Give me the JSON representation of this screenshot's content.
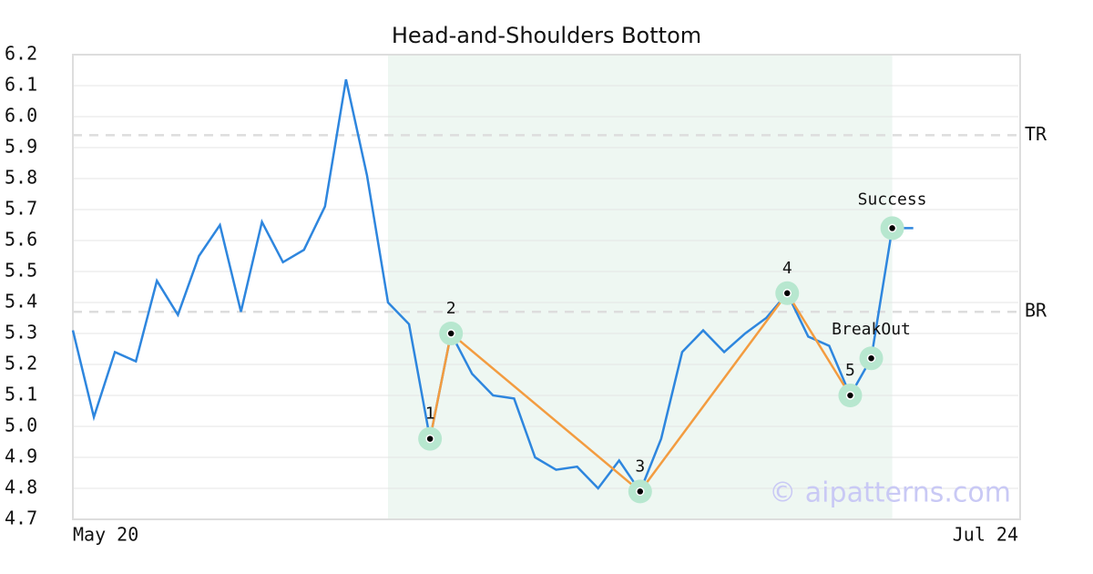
{
  "chart_data": {
    "type": "line",
    "title": "Head-and-Shoulders Bottom",
    "categories": [
      "May 20",
      null,
      null,
      null,
      null,
      null,
      null,
      null,
      null,
      null,
      null,
      null,
      null,
      null,
      null,
      null,
      null,
      null,
      null,
      null,
      null,
      null,
      null,
      null,
      null,
      null,
      null,
      null,
      null,
      null,
      null,
      null,
      null,
      null,
      null,
      null,
      null,
      null,
      null,
      null,
      null,
      null,
      null,
      null,
      null,
      "Jul 24"
    ],
    "series": [
      {
        "color": "#2e86de",
        "values": [
          5.31,
          5.03,
          5.24,
          5.21,
          5.47,
          5.36,
          5.55,
          5.65,
          5.37,
          5.66,
          5.53,
          5.57,
          5.71,
          6.12,
          5.81,
          5.4,
          5.33,
          4.96,
          5.3,
          5.17,
          5.1,
          5.09,
          4.9,
          4.86,
          4.87,
          4.8,
          4.89,
          4.79,
          4.96,
          5.24,
          5.31,
          5.24,
          5.3,
          5.35,
          5.43,
          5.29,
          5.26,
          5.1,
          5.22,
          5.64,
          5.64,
          null,
          null,
          null,
          null,
          null
        ]
      }
    ],
    "pattern": {
      "color": "#f39c40",
      "points": [
        {
          "label": "1",
          "x": 17,
          "value": 4.96
        },
        {
          "label": "2",
          "x": 18,
          "value": 5.3
        },
        {
          "label": "3",
          "x": 27,
          "value": 4.79
        },
        {
          "label": "4",
          "x": 34,
          "value": 5.43
        },
        {
          "label": "5",
          "x": 37,
          "value": 5.1
        }
      ]
    },
    "markers": [
      {
        "label": "BreakOut",
        "x": 38,
        "value": 5.22
      },
      {
        "label": "Success",
        "x": 39,
        "value": 5.64
      }
    ],
    "hlines": [
      {
        "label": "TR",
        "value": 5.94
      },
      {
        "label": "BR",
        "value": 5.37
      }
    ],
    "shaded_range": [
      15,
      39
    ],
    "ylim": [
      4.7,
      6.2
    ],
    "yticks": [
      4.7,
      4.8,
      4.9,
      {
        "value": 5.0,
        "label": "5.0"
      },
      5.1,
      5.2,
      5.3,
      5.4,
      5.5,
      5.6,
      5.7,
      5.8,
      5.9,
      {
        "value": 6.0,
        "label": "6.0"
      },
      6.1,
      6.2
    ],
    "grid": true,
    "watermark": "© aipatterns.com"
  }
}
